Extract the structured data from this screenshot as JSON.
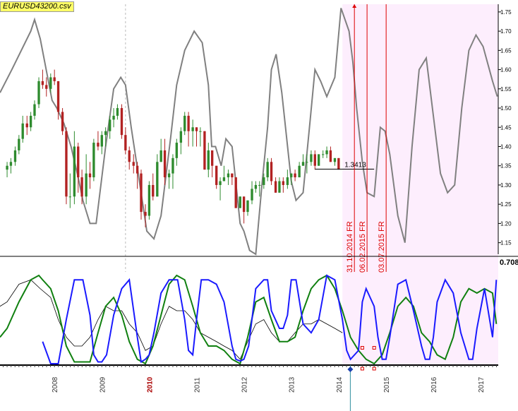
{
  "title": "EURUSD43200.csv",
  "colors": {
    "background": "#ffffff",
    "forecast_region": "#fdeefd",
    "candle_up": "#2e8b2e",
    "candle_down": "#b22222",
    "projection_line": "#808080",
    "event_line": "#dd0000",
    "osc_blue": "#1a1aff",
    "osc_green": "#108010",
    "osc_black": "#000000",
    "title_bg": "#ffff66"
  },
  "chart_data": {
    "type": "line",
    "price_panel": {
      "ylim": [
        1.12,
        1.77
      ],
      "y_ticks": [
        "1.15",
        "1.20",
        "1.25",
        "1.30",
        "1.35",
        "1.40",
        "1.45",
        "1.50",
        "1.55",
        "1.60",
        "1.65",
        "1.70",
        "1.75"
      ],
      "last_price_label": "1.3413",
      "last_price": 1.3413,
      "lower_value_label": "0.708",
      "candles": [
        [
          2007.5,
          1.34,
          1.36,
          1.32,
          1.35
        ],
        [
          2007.58,
          1.35,
          1.37,
          1.33,
          1.36
        ],
        [
          2007.67,
          1.36,
          1.4,
          1.35,
          1.39
        ],
        [
          2007.75,
          1.39,
          1.43,
          1.38,
          1.42
        ],
        [
          2007.83,
          1.42,
          1.48,
          1.41,
          1.46
        ],
        [
          2007.92,
          1.46,
          1.48,
          1.43,
          1.45
        ],
        [
          2008.0,
          1.45,
          1.49,
          1.44,
          1.48
        ],
        [
          2008.08,
          1.48,
          1.52,
          1.47,
          1.51
        ],
        [
          2008.17,
          1.51,
          1.58,
          1.5,
          1.57
        ],
        [
          2008.25,
          1.57,
          1.6,
          1.55,
          1.56
        ],
        [
          2008.33,
          1.56,
          1.58,
          1.53,
          1.55
        ],
        [
          2008.42,
          1.55,
          1.59,
          1.54,
          1.58
        ],
        [
          2008.5,
          1.58,
          1.6,
          1.56,
          1.57
        ],
        [
          2008.58,
          1.57,
          1.57,
          1.47,
          1.49
        ],
        [
          2008.67,
          1.49,
          1.5,
          1.43,
          1.44
        ],
        [
          2008.75,
          1.44,
          1.45,
          1.25,
          1.27
        ],
        [
          2008.83,
          1.27,
          1.33,
          1.24,
          1.27
        ],
        [
          2008.92,
          1.27,
          1.44,
          1.25,
          1.4
        ],
        [
          2009.0,
          1.4,
          1.41,
          1.28,
          1.32
        ],
        [
          2009.08,
          1.32,
          1.34,
          1.25,
          1.27
        ],
        [
          2009.17,
          1.27,
          1.38,
          1.25,
          1.33
        ],
        [
          2009.25,
          1.33,
          1.36,
          1.29,
          1.32
        ],
        [
          2009.33,
          1.32,
          1.42,
          1.31,
          1.41
        ],
        [
          2009.42,
          1.41,
          1.44,
          1.39,
          1.4
        ],
        [
          2009.5,
          1.4,
          1.44,
          1.38,
          1.43
        ],
        [
          2009.58,
          1.43,
          1.45,
          1.4,
          1.44
        ],
        [
          2009.67,
          1.44,
          1.48,
          1.42,
          1.47
        ],
        [
          2009.75,
          1.47,
          1.5,
          1.45,
          1.48
        ],
        [
          2009.83,
          1.48,
          1.51,
          1.47,
          1.5
        ],
        [
          2009.92,
          1.5,
          1.51,
          1.42,
          1.43
        ],
        [
          2010.0,
          1.43,
          1.45,
          1.38,
          1.39
        ],
        [
          2010.08,
          1.39,
          1.4,
          1.34,
          1.36
        ],
        [
          2010.17,
          1.36,
          1.38,
          1.33,
          1.35
        ],
        [
          2010.25,
          1.35,
          1.36,
          1.29,
          1.33
        ],
        [
          2010.33,
          1.33,
          1.34,
          1.21,
          1.23
        ],
        [
          2010.42,
          1.23,
          1.25,
          1.19,
          1.22
        ],
        [
          2010.5,
          1.22,
          1.31,
          1.21,
          1.3
        ],
        [
          2010.58,
          1.3,
          1.33,
          1.26,
          1.27
        ],
        [
          2010.67,
          1.27,
          1.38,
          1.27,
          1.36
        ],
        [
          2010.75,
          1.36,
          1.42,
          1.36,
          1.39
        ],
        [
          2010.83,
          1.39,
          1.42,
          1.3,
          1.32
        ],
        [
          2010.92,
          1.32,
          1.34,
          1.29,
          1.33
        ],
        [
          2011.0,
          1.33,
          1.38,
          1.29,
          1.37
        ],
        [
          2011.08,
          1.37,
          1.42,
          1.35,
          1.41
        ],
        [
          2011.17,
          1.41,
          1.45,
          1.38,
          1.44
        ],
        [
          2011.25,
          1.44,
          1.49,
          1.43,
          1.48
        ],
        [
          2011.33,
          1.48,
          1.49,
          1.4,
          1.44
        ],
        [
          2011.42,
          1.44,
          1.47,
          1.4,
          1.45
        ],
        [
          2011.5,
          1.45,
          1.45,
          1.4,
          1.44
        ],
        [
          2011.58,
          1.44,
          1.45,
          1.4,
          1.44
        ],
        [
          2011.67,
          1.44,
          1.44,
          1.34,
          1.34
        ],
        [
          2011.75,
          1.34,
          1.41,
          1.32,
          1.39
        ],
        [
          2011.83,
          1.39,
          1.39,
          1.32,
          1.35
        ],
        [
          2011.92,
          1.35,
          1.35,
          1.29,
          1.3
        ],
        [
          2012.0,
          1.3,
          1.32,
          1.26,
          1.31
        ],
        [
          2012.08,
          1.31,
          1.35,
          1.31,
          1.32
        ],
        [
          2012.17,
          1.32,
          1.34,
          1.3,
          1.33
        ],
        [
          2012.25,
          1.33,
          1.33,
          1.3,
          1.32
        ],
        [
          2012.33,
          1.32,
          1.32,
          1.24,
          1.24
        ],
        [
          2012.42,
          1.24,
          1.27,
          1.24,
          1.27
        ],
        [
          2012.5,
          1.27,
          1.27,
          1.2,
          1.23
        ],
        [
          2012.58,
          1.23,
          1.26,
          1.22,
          1.26
        ],
        [
          2012.67,
          1.26,
          1.31,
          1.25,
          1.29
        ],
        [
          2012.75,
          1.29,
          1.31,
          1.28,
          1.3
        ],
        [
          2012.83,
          1.3,
          1.31,
          1.27,
          1.3
        ],
        [
          2012.92,
          1.3,
          1.33,
          1.29,
          1.32
        ],
        [
          2013.0,
          1.32,
          1.37,
          1.31,
          1.36
        ],
        [
          2013.08,
          1.36,
          1.37,
          1.3,
          1.31
        ],
        [
          2013.17,
          1.31,
          1.32,
          1.28,
          1.28
        ],
        [
          2013.25,
          1.28,
          1.32,
          1.28,
          1.31
        ],
        [
          2013.33,
          1.31,
          1.32,
          1.28,
          1.3
        ],
        [
          2013.42,
          1.3,
          1.34,
          1.29,
          1.32
        ],
        [
          2013.5,
          1.32,
          1.33,
          1.3,
          1.33
        ],
        [
          2013.58,
          1.33,
          1.34,
          1.31,
          1.32
        ],
        [
          2013.67,
          1.32,
          1.36,
          1.32,
          1.35
        ],
        [
          2013.75,
          1.35,
          1.38,
          1.35,
          1.36
        ],
        [
          2013.83,
          1.36,
          1.38,
          1.33,
          1.36
        ],
        [
          2013.92,
          1.36,
          1.39,
          1.35,
          1.38
        ],
        [
          2014.0,
          1.38,
          1.39,
          1.34,
          1.35
        ],
        [
          2014.08,
          1.35,
          1.38,
          1.35,
          1.38
        ],
        [
          2014.17,
          1.38,
          1.39,
          1.37,
          1.38
        ],
        [
          2014.25,
          1.38,
          1.4,
          1.37,
          1.39
        ],
        [
          2014.33,
          1.39,
          1.4,
          1.36,
          1.36
        ],
        [
          2014.42,
          1.36,
          1.37,
          1.35,
          1.37
        ],
        [
          2014.5,
          1.37,
          1.37,
          1.34,
          1.34
        ]
      ],
      "projection": {
        "x": [
          2007.35,
          2007.6,
          2008.0,
          2008.08,
          2008.2,
          2008.45,
          2008.55,
          2008.7,
          2008.85,
          2009.0,
          2009.1,
          2009.25,
          2009.38,
          2009.58,
          2009.75,
          2009.9,
          2010.0,
          2010.12,
          2010.28,
          2010.45,
          2010.6,
          2010.75,
          2010.95,
          2011.08,
          2011.25,
          2011.45,
          2011.62,
          2011.75,
          2011.82,
          2011.9,
          2012.02,
          2012.12,
          2012.25,
          2012.42,
          2012.5,
          2012.62,
          2012.75,
          2012.88,
          2013.0,
          2013.08,
          2013.18,
          2013.3,
          2013.5,
          2013.6,
          2013.75,
          2013.9,
          2014.0,
          2014.12,
          2014.25,
          2014.42,
          2014.55,
          2014.72,
          2014.8,
          2014.88,
          2015.0,
          2015.1,
          2015.25,
          2015.38,
          2015.48,
          2015.58,
          2015.75,
          2015.9,
          2016.05,
          2016.2,
          2016.35,
          2016.5,
          2016.65,
          2016.8,
          2016.95,
          2017.1,
          2017.25,
          2017.4,
          2017.55,
          2017.75,
          2017.85
        ],
        "y": [
          1.54,
          1.6,
          1.7,
          1.73,
          1.68,
          1.52,
          1.5,
          1.46,
          1.4,
          1.32,
          1.26,
          1.2,
          1.2,
          1.4,
          1.55,
          1.58,
          1.56,
          1.45,
          1.32,
          1.18,
          1.16,
          1.22,
          1.42,
          1.56,
          1.65,
          1.7,
          1.67,
          1.56,
          1.4,
          1.4,
          1.35,
          1.42,
          1.4,
          1.2,
          1.18,
          1.13,
          1.12,
          1.3,
          1.45,
          1.6,
          1.64,
          1.54,
          1.31,
          1.26,
          1.28,
          1.47,
          1.6,
          1.57,
          1.53,
          1.58,
          1.76,
          1.7,
          1.62,
          1.5,
          1.36,
          1.28,
          1.27,
          1.45,
          1.44,
          1.38,
          1.22,
          1.15,
          1.4,
          1.6,
          1.63,
          1.48,
          1.33,
          1.28,
          1.3,
          1.5,
          1.65,
          1.69,
          1.66,
          1.57,
          1.53
        ]
      },
      "events": [
        {
          "label": "31.10.2014 FR",
          "x": 2014.833,
          "price": 1.27
        },
        {
          "label": "06.02.2015 FR",
          "x": 2015.1,
          "price": 1.44
        },
        {
          "label": "03.07.2015 FR",
          "x": 2015.503,
          "price": 1.14
        }
      ]
    },
    "oscillator_panel": {
      "blue": {
        "x": [
          2008.25,
          2008.42,
          2008.58,
          2008.75,
          2008.92,
          2009.0,
          2009.1,
          2009.25,
          2009.33,
          2009.42,
          2009.5,
          2009.6,
          2009.75,
          2009.92,
          2010.08,
          2010.25,
          2010.33,
          2010.42,
          2010.5,
          2010.6,
          2010.75,
          2010.92,
          2011.0,
          2011.1,
          2011.25,
          2011.33,
          2011.42,
          2011.5,
          2011.6,
          2011.75,
          2011.92,
          2012.08,
          2012.25,
          2012.33,
          2012.42,
          2012.5,
          2012.6,
          2012.75,
          2012.92,
          2013.0,
          2013.08,
          2013.25,
          2013.33,
          2013.42,
          2013.5,
          2013.6,
          2013.75,
          2013.92,
          2014.08,
          2014.25,
          2014.42,
          2014.58,
          2014.67,
          2014.75,
          2014.92,
          2015.0,
          2015.08,
          2015.25,
          2015.33,
          2015.42,
          2015.5,
          2015.58,
          2015.75,
          2015.92,
          2016.08,
          2016.25,
          2016.33,
          2016.42,
          2016.5,
          2016.58,
          2016.75,
          2016.92,
          2017.08,
          2017.25,
          2017.33,
          2017.42,
          2017.58,
          2017.75,
          2017.83
        ],
        "y": [
          0.25,
          0.0,
          0.0,
          0.5,
          0.95,
          0.95,
          0.95,
          0.55,
          0.1,
          0.02,
          0.02,
          0.1,
          0.55,
          0.85,
          0.95,
          0.3,
          0.02,
          0.05,
          0.1,
          0.35,
          0.8,
          0.95,
          0.95,
          0.95,
          0.5,
          0.15,
          0.1,
          0.5,
          0.95,
          0.95,
          0.9,
          0.7,
          0.2,
          0.05,
          0.03,
          0.05,
          0.2,
          0.85,
          0.95,
          0.95,
          0.6,
          0.4,
          0.4,
          0.55,
          0.95,
          0.95,
          0.45,
          0.35,
          0.5,
          1.0,
          0.95,
          0.5,
          0.15,
          0.05,
          0.15,
          0.7,
          0.85,
          0.65,
          0.3,
          0.05,
          0.05,
          0.3,
          0.9,
          0.95,
          0.6,
          0.2,
          0.05,
          0.05,
          0.3,
          0.7,
          0.95,
          0.8,
          0.35,
          0.05,
          0.05,
          0.4,
          0.85,
          0.3,
          0.95
        ]
      },
      "green": {
        "x": [
          2007.35,
          2007.5,
          2007.75,
          2008.0,
          2008.17,
          2008.25,
          2008.42,
          2008.58,
          2008.75,
          2008.92,
          2009.08,
          2009.25,
          2009.42,
          2009.58,
          2009.75,
          2009.92,
          2010.08,
          2010.25,
          2010.42,
          2010.58,
          2010.75,
          2010.92,
          2011.08,
          2011.25,
          2011.42,
          2011.58,
          2011.75,
          2011.92,
          2012.08,
          2012.25,
          2012.42,
          2012.58,
          2012.75,
          2012.92,
          2013.08,
          2013.25,
          2013.42,
          2013.58,
          2013.75,
          2013.92,
          2014.08,
          2014.25,
          2014.42,
          2014.58,
          2014.75,
          2014.92,
          2015.08,
          2015.25,
          2015.42,
          2015.58,
          2015.75,
          2015.92,
          2016.08,
          2016.25,
          2016.42,
          2016.58,
          2016.75,
          2016.92,
          2017.08,
          2017.25,
          2017.42,
          2017.58,
          2017.75,
          2017.83
        ],
        "y": [
          0.3,
          0.4,
          0.7,
          0.95,
          1.0,
          0.95,
          0.85,
          0.6,
          0.2,
          0.02,
          0.02,
          0.02,
          0.35,
          0.65,
          0.75,
          0.55,
          0.25,
          0.05,
          0.0,
          0.2,
          0.55,
          0.9,
          1.0,
          0.95,
          0.65,
          0.35,
          0.2,
          0.2,
          0.15,
          0.05,
          0.0,
          0.3,
          0.7,
          0.75,
          0.5,
          0.25,
          0.25,
          0.3,
          0.6,
          0.85,
          0.95,
          1.0,
          0.85,
          0.6,
          0.3,
          0.15,
          0.05,
          0.0,
          0.1,
          0.35,
          0.65,
          0.75,
          0.65,
          0.35,
          0.25,
          0.1,
          0.05,
          0.3,
          0.7,
          0.85,
          0.8,
          0.85,
          0.8,
          0.45
        ]
      },
      "black": {
        "x": [
          2007.35,
          2007.5,
          2007.75,
          2008.0,
          2008.2,
          2008.42,
          2008.58,
          2008.75,
          2008.92,
          2009.08,
          2009.25,
          2009.42,
          2009.58,
          2009.75,
          2009.92,
          2010.08,
          2010.25,
          2010.42,
          2010.58,
          2010.75,
          2010.92,
          2011.08,
          2011.25,
          2011.42,
          2011.58,
          2011.75,
          2011.92,
          2012.08,
          2012.25,
          2012.42,
          2012.58,
          2012.75,
          2012.92,
          2013.08,
          2013.25,
          2013.42,
          2013.58,
          2013.75,
          2013.92,
          2014.08,
          2014.25,
          2014.42,
          2014.58
        ],
        "y": [
          0.65,
          0.7,
          0.9,
          0.95,
          0.85,
          0.75,
          0.5,
          0.3,
          0.2,
          0.2,
          0.3,
          0.5,
          0.65,
          0.6,
          0.6,
          0.45,
          0.35,
          0.15,
          0.2,
          0.45,
          0.65,
          0.6,
          0.6,
          0.5,
          0.35,
          0.3,
          0.25,
          0.2,
          0.15,
          0.05,
          0.25,
          0.45,
          0.5,
          0.35,
          0.25,
          0.25,
          0.35,
          0.45,
          0.45,
          0.5,
          0.45,
          0.4,
          0.35
        ]
      },
      "markers": [
        2015.0,
        2015.25
      ]
    },
    "x_axis": {
      "xlim": [
        2007.35,
        2017.87
      ],
      "tick_labels": [
        "2008",
        "2009",
        "2010",
        "2011",
        "2012",
        "2013",
        "2014",
        "2015",
        "2016",
        "2017"
      ],
      "highlight_label": "2010",
      "forecast_start": 2014.58,
      "cursor_x": 2015.0
    }
  }
}
